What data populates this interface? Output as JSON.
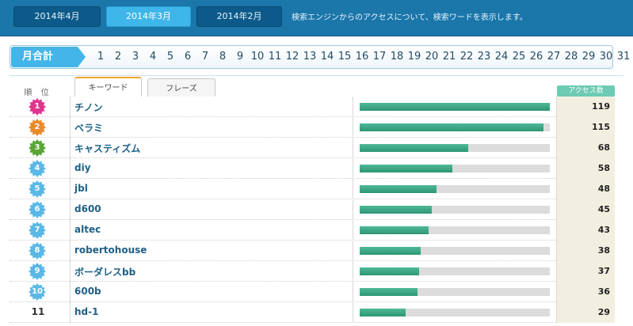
{
  "header": {
    "months": [
      {
        "label": "2014年4月",
        "active": false
      },
      {
        "label": "2014年3月",
        "active": true
      },
      {
        "label": "2014年2月",
        "active": false
      }
    ],
    "description": "検索エンジンからのアクセスについて、検索ワードを表示します。"
  },
  "daybar": {
    "total_label": "月合計",
    "days": [
      "1",
      "2",
      "3",
      "4",
      "5",
      "6",
      "7",
      "8",
      "9",
      "10",
      "11",
      "12",
      "13",
      "14",
      "15",
      "16",
      "17",
      "18",
      "19",
      "20",
      "21",
      "22",
      "23",
      "24",
      "25",
      "26",
      "27",
      "28",
      "29",
      "30",
      "31"
    ]
  },
  "table": {
    "rank_header": "順 位",
    "tabs": [
      {
        "label": "キーワード",
        "active": true
      },
      {
        "label": "フレーズ",
        "active": false
      }
    ],
    "access_header": "アクセス数",
    "max_count": 119,
    "rows": [
      {
        "rank": "1",
        "keyword": "チノン",
        "count": 119,
        "badge_color": "#e0358e"
      },
      {
        "rank": "2",
        "keyword": "ベラミ",
        "count": 115,
        "badge_color": "#e98a2b"
      },
      {
        "rank": "3",
        "keyword": "キャスティズム",
        "count": 68,
        "badge_color": "#5aa637"
      },
      {
        "rank": "4",
        "keyword": "diy",
        "count": 58,
        "badge_color": "#59b8e6"
      },
      {
        "rank": "5",
        "keyword": "jbl",
        "count": 48,
        "badge_color": "#59b8e6"
      },
      {
        "rank": "6",
        "keyword": "d600",
        "count": 45,
        "badge_color": "#59b8e6"
      },
      {
        "rank": "7",
        "keyword": "altec",
        "count": 43,
        "badge_color": "#59b8e6"
      },
      {
        "rank": "8",
        "keyword": "robertohouse",
        "count": 38,
        "badge_color": "#59b8e6"
      },
      {
        "rank": "9",
        "keyword": "ボーダレスbb",
        "count": 37,
        "badge_color": "#59b8e6"
      },
      {
        "rank": "10",
        "keyword": "600b",
        "count": 36,
        "badge_color": "#59b8e6"
      },
      {
        "rank": "11",
        "keyword": "hd-1",
        "count": 29,
        "badge_color": ""
      }
    ]
  }
}
